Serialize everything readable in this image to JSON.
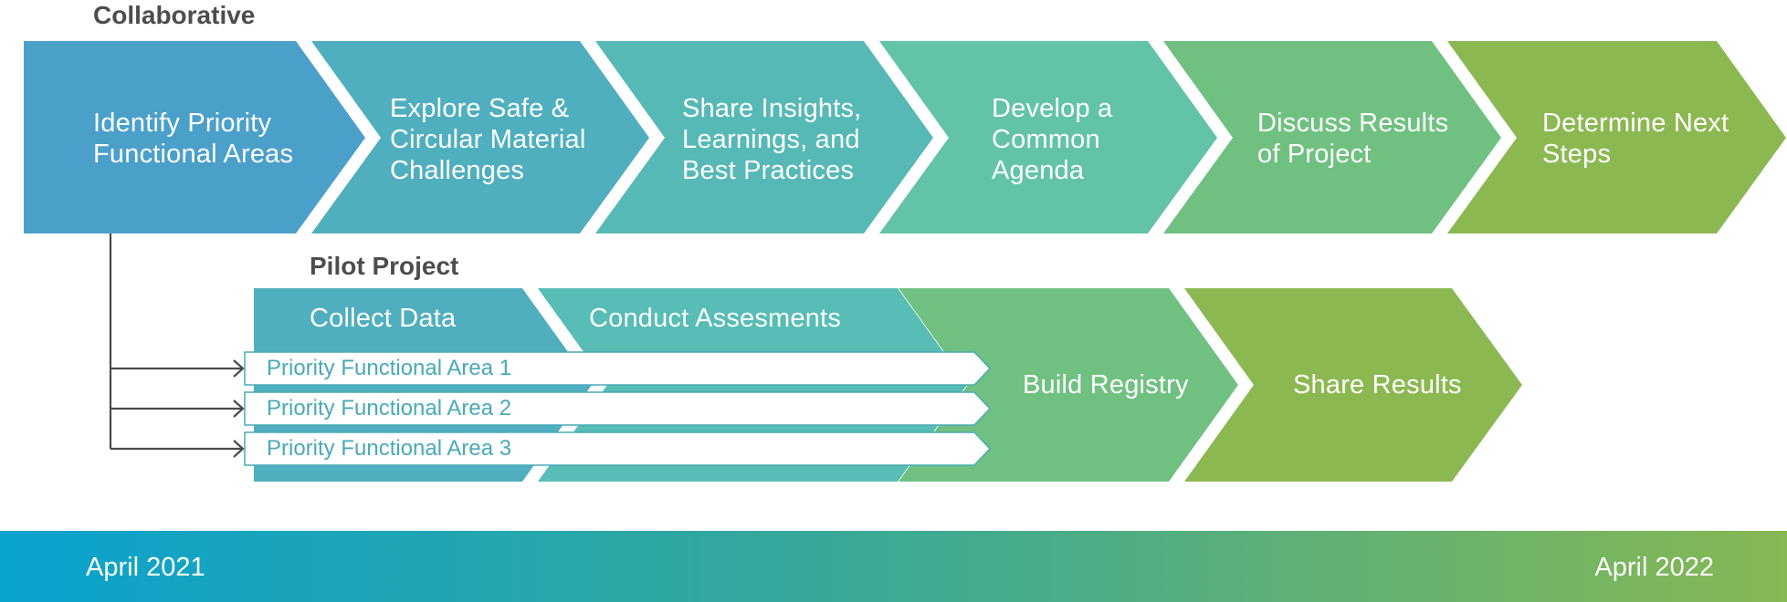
{
  "collaborative": {
    "title": "Collaborative",
    "steps": [
      {
        "label": "Identify Priority\nFunctional Areas",
        "color": "#4ba0ca"
      },
      {
        "label": "Explore Safe &\nCircular Material\nChallenges",
        "color": "#50afbe"
      },
      {
        "label": "Share Insights,\nLearnings, and\nBest Practices",
        "color": "#57b9b6"
      },
      {
        "label": "Develop a\nCommon\nAgenda",
        "color": "#62c3a8"
      },
      {
        "label": "Discuss Results\nof Project",
        "color": "#70c181"
      },
      {
        "label": "Determine Next\nSteps",
        "color": "#8cb852"
      }
    ]
  },
  "pilot": {
    "title": "Pilot Project",
    "steps": [
      {
        "label": "Collect Data",
        "color": "#50afbe"
      },
      {
        "label": "Conduct Assesments",
        "color": "#57bdb5"
      },
      {
        "label": "Build Registry",
        "color": "#70c181"
      },
      {
        "label": "Share Results",
        "color": "#8cb852"
      }
    ],
    "functional_areas": [
      "Priority Functional Area 1",
      "Priority Functional Area 2",
      "Priority Functional Area 3"
    ]
  },
  "timeline": {
    "start": "April 2021",
    "end": "April 2022",
    "gradient_start": "#0aa2cf",
    "gradient_mid": "#35a89a",
    "gradient_end": "#86b853"
  },
  "colors": {
    "connector": "#4a4a4a",
    "title_text": "#4d4d4d",
    "functional_area_text": "#49aab5",
    "functional_area_border": "#49aab5"
  }
}
